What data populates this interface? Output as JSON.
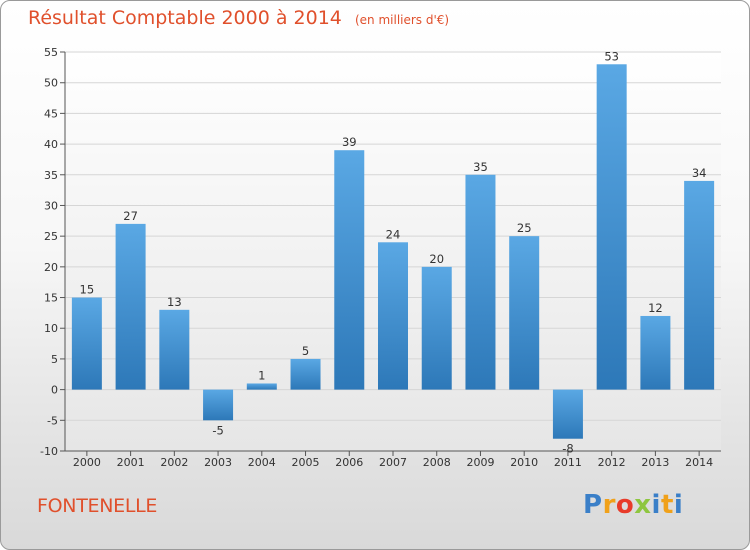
{
  "title": "Résultat Comptable 2000 à 2014",
  "subtitle": "(en milliers d'€)",
  "commune": "FONTENELLE",
  "logo": {
    "letters": [
      "P",
      "r",
      "o",
      "x",
      "i",
      "t",
      "i"
    ],
    "colors": [
      "#3a7fc8",
      "#f0a11a",
      "#e83b2a",
      "#8ec63f",
      "#3a7fc8",
      "#f0a11a",
      "#3a7fc8"
    ]
  },
  "colors": {
    "bar_light": "#5aa8e4",
    "bar_dark": "#2d78b8",
    "grid": "#d6d6d6",
    "axis": "#555555",
    "title": "#e0502c"
  },
  "chart_data": {
    "type": "bar",
    "title": "Résultat Comptable 2000 à 2014",
    "subtitle": "(en milliers d'€)",
    "categories": [
      "2000",
      "2001",
      "2002",
      "2003",
      "2004",
      "2005",
      "2006",
      "2007",
      "2008",
      "2009",
      "2010",
      "2011",
      "2012",
      "2013",
      "2014"
    ],
    "values": [
      15,
      27,
      13,
      -5,
      1,
      5,
      39,
      24,
      20,
      35,
      25,
      -8,
      53,
      12,
      34
    ],
    "ylim": [
      -10,
      55
    ],
    "yticks": [
      -10,
      -5,
      0,
      5,
      10,
      15,
      20,
      25,
      30,
      35,
      40,
      45,
      50,
      55
    ],
    "grid": true,
    "xlabel": "",
    "ylabel": ""
  }
}
